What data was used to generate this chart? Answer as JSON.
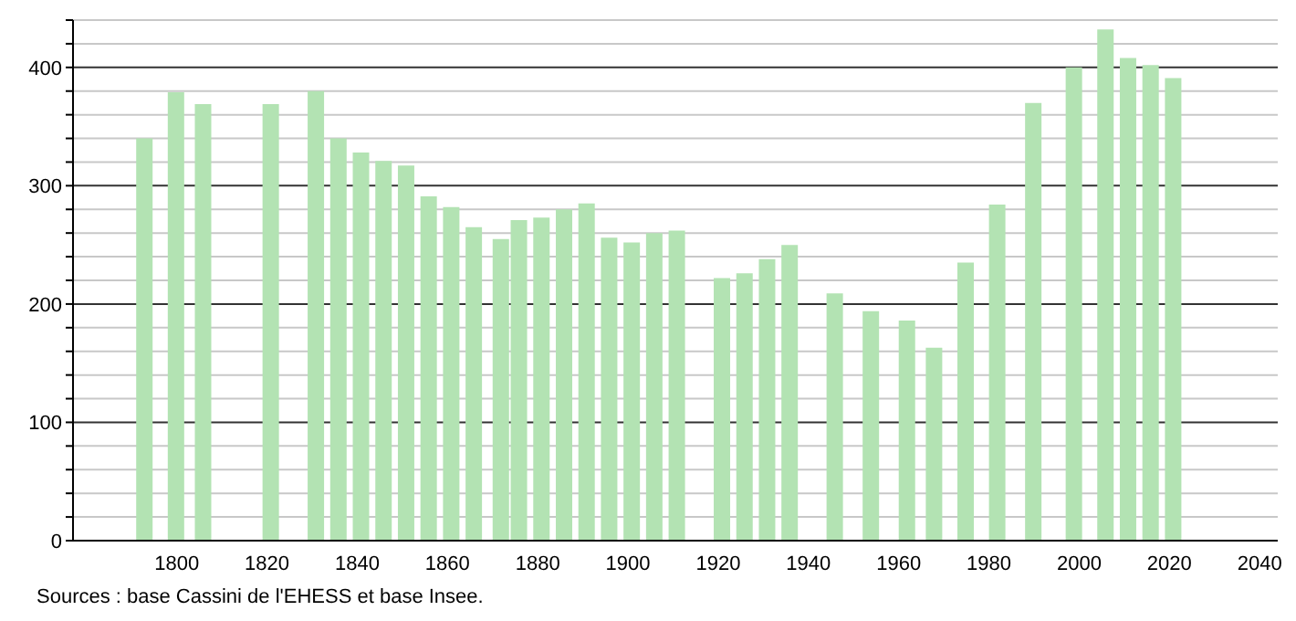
{
  "chart_data": {
    "type": "bar",
    "color": "#b3e3b3",
    "x": [
      1793,
      1800,
      1806,
      1821,
      1831,
      1836,
      1841,
      1846,
      1851,
      1856,
      1861,
      1866,
      1872,
      1876,
      1881,
      1886,
      1891,
      1896,
      1901,
      1906,
      1911,
      1921,
      1926,
      1931,
      1936,
      1946,
      1954,
      1962,
      1968,
      1975,
      1982,
      1990,
      1999,
      2006,
      2011,
      2016,
      2021
    ],
    "values": [
      340,
      379,
      369,
      369,
      380,
      340,
      328,
      321,
      317,
      291,
      282,
      265,
      255,
      271,
      273,
      280,
      285,
      256,
      252,
      260,
      262,
      222,
      226,
      238,
      250,
      209,
      194,
      186,
      163,
      235,
      284,
      370,
      400,
      432,
      408,
      402,
      391
    ],
    "xlim": [
      1777,
      2044
    ],
    "xticks": [
      1800,
      1820,
      1840,
      1860,
      1880,
      1900,
      1920,
      1940,
      1960,
      1980,
      2000,
      2020,
      2040
    ],
    "ylim": [
      0,
      440
    ],
    "yticks": [
      0,
      {
        "value": 20,
        "label": null
      },
      {
        "value": 40,
        "label": null
      },
      {
        "value": 60,
        "label": null
      },
      {
        "value": 80,
        "label": null
      },
      100,
      {
        "value": 120,
        "label": null
      },
      {
        "value": 140,
        "label": null
      },
      {
        "value": 160,
        "label": null
      },
      {
        "value": 180,
        "label": null
      },
      200,
      {
        "value": 220,
        "label": null
      },
      {
        "value": 240,
        "label": null
      },
      {
        "value": 260,
        "label": null
      },
      {
        "value": 280,
        "label": null
      },
      300,
      {
        "value": 320,
        "label": null
      },
      {
        "value": 340,
        "label": null
      },
      {
        "value": 360,
        "label": null
      },
      {
        "value": 380,
        "label": null
      },
      400,
      {
        "value": 420,
        "label": null
      },
      {
        "value": 440,
        "label": null
      }
    ],
    "grid": "y",
    "annotations": [
      "Sources : base Cassini de l'EHESS et base Insee."
    ]
  }
}
